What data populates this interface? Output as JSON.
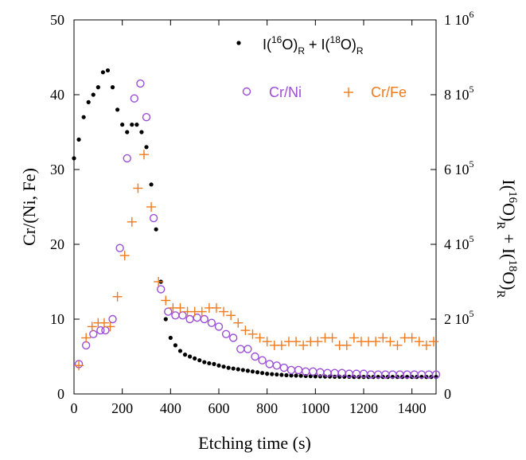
{
  "chart_data": {
    "type": "scatter",
    "title": "",
    "xlabel": "Etching time (s)",
    "ylabel_left": "Cr/(Ni, Fe)",
    "ylabel_right": {
      "main": "I(",
      "sup1": "16",
      "mid1": "O)",
      "sub1": "R",
      "mid2": " + I(",
      "sup2": "18",
      "mid3": "O)",
      "sub2": "R"
    },
    "xlim": [
      0,
      1500
    ],
    "ylim_left": [
      0,
      50
    ],
    "ylim_right": [
      0,
      1000000
    ],
    "x_ticks": [
      0,
      200,
      400,
      600,
      800,
      1000,
      1200,
      1400
    ],
    "y_ticks_left": [
      0,
      10,
      20,
      30,
      40,
      50
    ],
    "y_ticks_right": [
      {
        "value": 0,
        "label": "0",
        "exp": ""
      },
      {
        "value": 200000,
        "label": "2 10",
        "exp": "5"
      },
      {
        "value": 400000,
        "label": "4 10",
        "exp": "5"
      },
      {
        "value": 600000,
        "label": "6 10",
        "exp": "5"
      },
      {
        "value": 800000,
        "label": "8 10",
        "exp": "5"
      },
      {
        "value": 1000000,
        "label": "1 10",
        "exp": "6"
      }
    ],
    "grid": false,
    "legend_position": "top-right",
    "legend_entries": {
      "o": {
        "pre": "I(",
        "sup1": "16",
        "mid1": "O)",
        "sub1": "R",
        "mid2": " + I(",
        "sup2": "18",
        "mid3": "O)",
        "sub2": "R"
      },
      "crni": "Cr/Ni",
      "crfe": "Cr/Fe"
    },
    "series": [
      {
        "name": "I(16O)R + I(18O)R",
        "axis": "right",
        "marker": "dot",
        "color": "#000000",
        "x": [
          0,
          20,
          40,
          60,
          80,
          100,
          120,
          140,
          160,
          180,
          200,
          220,
          240,
          260,
          280,
          300,
          320,
          340,
          360,
          380,
          400,
          420,
          440,
          460,
          480,
          500,
          520,
          540,
          560,
          580,
          600,
          620,
          640,
          660,
          680,
          700,
          720,
          740,
          760,
          780,
          800,
          820,
          840,
          860,
          880,
          900,
          920,
          940,
          960,
          980,
          1000,
          1020,
          1040,
          1060,
          1080,
          1100,
          1120,
          1140,
          1160,
          1180,
          1200,
          1220,
          1240,
          1260,
          1280,
          1300,
          1320,
          1340,
          1360,
          1380,
          1400,
          1420,
          1440,
          1460,
          1480,
          1500
        ],
        "y": [
          630000,
          680000,
          740000,
          780000,
          800000,
          820000,
          860000,
          865000,
          820000,
          760000,
          720000,
          700000,
          720000,
          720000,
          700000,
          660000,
          560000,
          440000,
          300000,
          200000,
          150000,
          130000,
          115000,
          105000,
          100000,
          95000,
          90000,
          85000,
          82000,
          80000,
          76000,
          73000,
          70000,
          68000,
          66000,
          64000,
          62000,
          60000,
          58000,
          56000,
          54000,
          53000,
          52000,
          51000,
          50000,
          49500,
          49000,
          48500,
          48000,
          47500,
          47000,
          47000,
          46500,
          46500,
          46000,
          46000,
          46000,
          46000,
          45500,
          45500,
          45500,
          45500,
          45500,
          45500,
          45500,
          45500,
          45500,
          45500,
          45500,
          45500,
          45500,
          45500,
          45500,
          45500,
          45500,
          45500
        ]
      },
      {
        "name": "Cr/Ni",
        "axis": "left",
        "marker": "circle",
        "color": "#9b4fd8",
        "x": [
          20,
          50,
          80,
          110,
          130,
          160,
          190,
          220,
          250,
          275,
          300,
          330,
          360,
          390,
          420,
          450,
          480,
          510,
          540,
          570,
          600,
          630,
          660,
          690,
          720,
          750,
          780,
          810,
          840,
          870,
          900,
          930,
          960,
          990,
          1020,
          1050,
          1080,
          1110,
          1140,
          1170,
          1200,
          1230,
          1260,
          1290,
          1320,
          1350,
          1380,
          1410,
          1440,
          1470,
          1500
        ],
        "y": [
          4.0,
          6.5,
          8.0,
          8.5,
          8.5,
          10.0,
          19.5,
          31.5,
          39.5,
          41.5,
          37.0,
          23.5,
          14.0,
          11.0,
          10.5,
          10.5,
          10.0,
          10.2,
          10.0,
          9.5,
          9.0,
          8.0,
          7.5,
          6.0,
          6.0,
          5.0,
          4.5,
          4.0,
          3.8,
          3.5,
          3.2,
          3.2,
          3.0,
          3.0,
          2.9,
          2.8,
          2.8,
          2.8,
          2.7,
          2.7,
          2.7,
          2.6,
          2.6,
          2.6,
          2.6,
          2.6,
          2.6,
          2.6,
          2.6,
          2.6,
          2.6
        ]
      },
      {
        "name": "Cr/Fe",
        "axis": "left",
        "marker": "plus",
        "color": "#f07a1e",
        "x": [
          20,
          50,
          75,
          100,
          125,
          150,
          180,
          210,
          240,
          265,
          290,
          320,
          350,
          380,
          410,
          440,
          470,
          500,
          530,
          560,
          590,
          620,
          650,
          680,
          710,
          740,
          770,
          800,
          830,
          860,
          890,
          920,
          950,
          980,
          1010,
          1040,
          1070,
          1100,
          1130,
          1160,
          1190,
          1220,
          1250,
          1280,
          1310,
          1340,
          1370,
          1400,
          1430,
          1460,
          1490
        ],
        "y": [
          3.8,
          7.5,
          9.0,
          9.5,
          9.5,
          9.0,
          13.0,
          18.5,
          23.0,
          27.5,
          32.0,
          25.0,
          15.0,
          12.5,
          11.5,
          11.5,
          11.0,
          11.0,
          11.0,
          11.5,
          11.5,
          11.0,
          10.5,
          9.5,
          8.5,
          8.0,
          7.5,
          7.0,
          6.5,
          6.5,
          7.0,
          7.0,
          6.5,
          7.0,
          7.0,
          7.5,
          7.5,
          6.5,
          6.5,
          7.5,
          7.0,
          7.0,
          7.0,
          7.5,
          7.0,
          6.5,
          7.5,
          7.5,
          7.0,
          6.5,
          7.0
        ]
      }
    ]
  }
}
